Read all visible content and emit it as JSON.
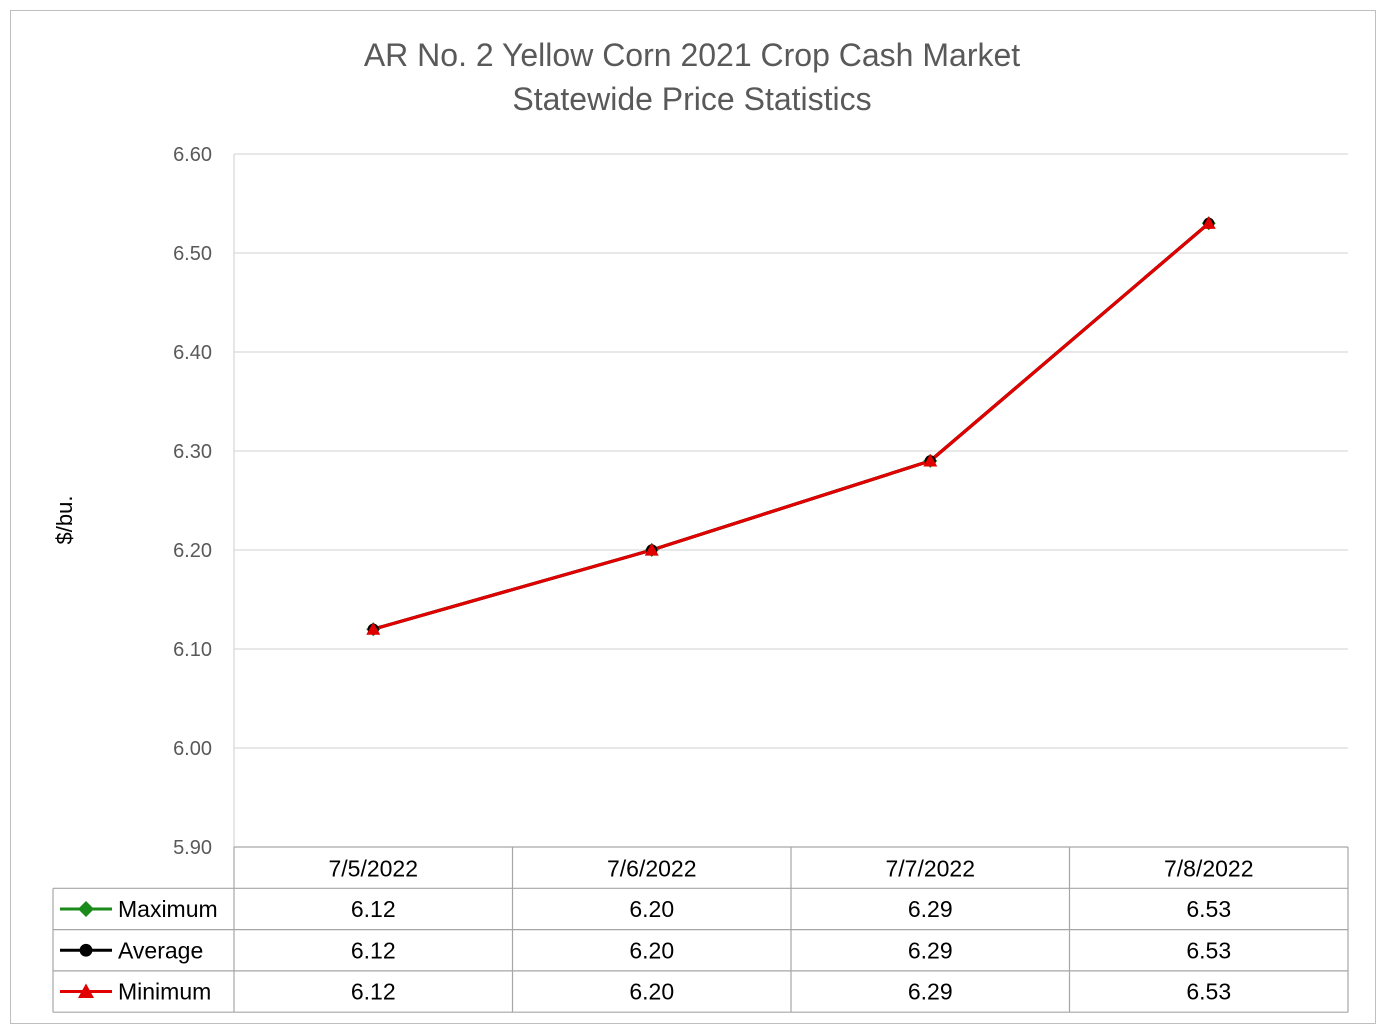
{
  "chart_data": {
    "type": "line",
    "title": "AR No. 2 Yellow Corn 2021 Crop Cash Market",
    "subtitle": "Statewide Price Statistics",
    "xlabel": "",
    "ylabel": "$/bu.",
    "ylim": [
      5.9,
      6.6
    ],
    "yticks": [
      "5.90",
      "6.00",
      "6.10",
      "6.20",
      "6.30",
      "6.40",
      "6.50",
      "6.60"
    ],
    "grid": true,
    "legend": "data-table-bottom",
    "categories": [
      "7/5/2022",
      "7/6/2022",
      "7/7/2022",
      "7/8/2022"
    ],
    "series": [
      {
        "name": "Maximum",
        "values": [
          6.12,
          6.2,
          6.29,
          6.53
        ],
        "labels": [
          "6.12",
          "6.20",
          "6.29",
          "6.53"
        ],
        "color": "#1a8a1a",
        "marker": "diamond"
      },
      {
        "name": "Average",
        "values": [
          6.12,
          6.2,
          6.29,
          6.53
        ],
        "labels": [
          "6.12",
          "6.20",
          "6.29",
          "6.53"
        ],
        "color": "#000000",
        "marker": "circle"
      },
      {
        "name": "Minimum",
        "values": [
          6.12,
          6.2,
          6.29,
          6.53
        ],
        "labels": [
          "6.12",
          "6.20",
          "6.29",
          "6.53"
        ],
        "color": "#e00000",
        "marker": "triangle"
      }
    ]
  }
}
